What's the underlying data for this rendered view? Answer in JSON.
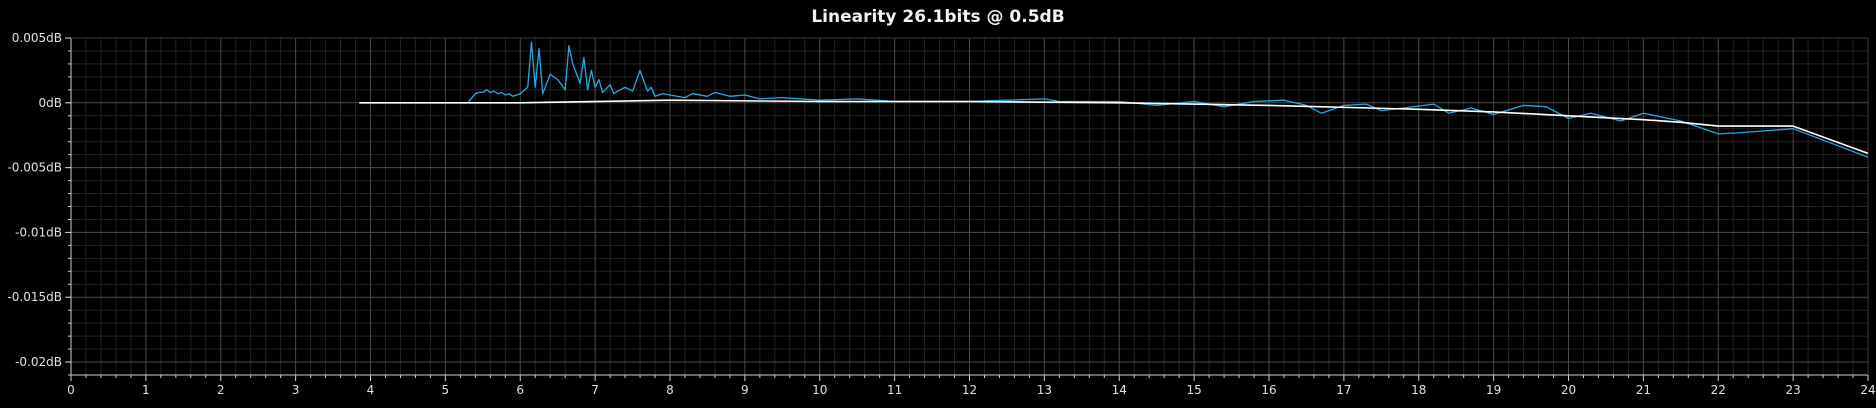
{
  "chart_data": {
    "type": "line",
    "title": "Linearity 26.1bits @ 0.5dB",
    "xlabel": "",
    "ylabel": "",
    "xlim": [
      0,
      24
    ],
    "ylim": [
      -0.021,
      0.005
    ],
    "x_ticks": [
      "0",
      "1",
      "2",
      "3",
      "4",
      "5",
      "6",
      "7",
      "8",
      "9",
      "10",
      "11",
      "12",
      "13",
      "14",
      "15",
      "16",
      "17",
      "18",
      "19",
      "20",
      "21",
      "22",
      "23",
      "24"
    ],
    "y_ticks": [
      {
        "value": 0.005,
        "label": "0.005dB"
      },
      {
        "value": 0,
        "label": "0dB"
      },
      {
        "value": -0.005,
        "label": "-0.005dB"
      },
      {
        "value": -0.01,
        "label": "-0.01dB"
      },
      {
        "value": -0.015,
        "label": "-0.015dB"
      },
      {
        "value": -0.02,
        "label": "-0.02dB"
      }
    ],
    "grid": true,
    "series": [
      {
        "color": "#29a8e0",
        "x": [
          3.85,
          5.3,
          5.4,
          5.45,
          5.5,
          5.55,
          5.6,
          5.65,
          5.7,
          5.75,
          5.8,
          5.85,
          5.9,
          6.0,
          6.1,
          6.15,
          6.2,
          6.25,
          6.3,
          6.4,
          6.5,
          6.6,
          6.65,
          6.7,
          6.8,
          6.85,
          6.9,
          6.95,
          7.0,
          7.05,
          7.1,
          7.2,
          7.25,
          7.3,
          7.4,
          7.5,
          7.6,
          7.7,
          7.75,
          7.8,
          7.9,
          8.0,
          8.2,
          8.3,
          8.5,
          8.6,
          8.8,
          9.0,
          9.2,
          9.5,
          10.0,
          10.5,
          11.0,
          11.5,
          12.0,
          12.5,
          13.0,
          13.2,
          13.5,
          14.0,
          14.5,
          15.0,
          15.4,
          15.8,
          16.2,
          16.5,
          16.7,
          17.0,
          17.3,
          17.5,
          17.8,
          18.2,
          18.4,
          18.7,
          19.0,
          19.4,
          19.7,
          20.0,
          20.3,
          20.7,
          21.0,
          21.5,
          22.0,
          22.3,
          23.0,
          24.0
        ],
        "values": [
          0,
          0,
          0.0007,
          0.0008,
          0.0008,
          0.001,
          0.0008,
          0.0009,
          0.0007,
          0.0008,
          0.0006,
          0.0007,
          0.0005,
          0.0007,
          0.0012,
          0.0047,
          0.0012,
          0.0042,
          0.0007,
          0.0022,
          0.0018,
          0.001,
          0.0044,
          0.003,
          0.0015,
          0.0035,
          0.001,
          0.0025,
          0.0012,
          0.0018,
          0.0008,
          0.0014,
          0.0007,
          0.0009,
          0.0012,
          0.0009,
          0.0025,
          0.0009,
          0.0012,
          0.0005,
          0.0007,
          0.0006,
          0.0004,
          0.0007,
          0.0005,
          0.0008,
          0.0005,
          0.0006,
          0.0003,
          0.0004,
          0.0002,
          0.0003,
          0.0001,
          0.0001,
          0.0001,
          0.0002,
          0.0003,
          0.0001,
          0.0001,
          0.0001,
          -0.0002,
          0.0001,
          -0.0003,
          0.0001,
          0.0002,
          -0.0002,
          -0.0008,
          -0.0002,
          -0.0001,
          -0.0006,
          -0.0004,
          -0.0001,
          -0.0008,
          -0.0004,
          -0.0009,
          -0.0002,
          -0.0003,
          -0.0012,
          -0.0008,
          -0.0014,
          -0.0008,
          -0.0014,
          -0.0024,
          -0.0023,
          -0.002,
          -0.0042
        ]
      },
      {
        "color": "#ffffff",
        "x": [
          3.85,
          6.0,
          8.0,
          10.0,
          12.0,
          14.0,
          16.0,
          18.0,
          19.0,
          20.0,
          21.0,
          21.5,
          22.0,
          23.0,
          24.0
        ],
        "values": [
          0,
          0,
          0.0002,
          0.0001,
          0.0001,
          0,
          -0.0002,
          -0.0005,
          -0.0007,
          -0.001,
          -0.0013,
          -0.0015,
          -0.0018,
          -0.0018,
          -0.0039
        ]
      }
    ]
  }
}
